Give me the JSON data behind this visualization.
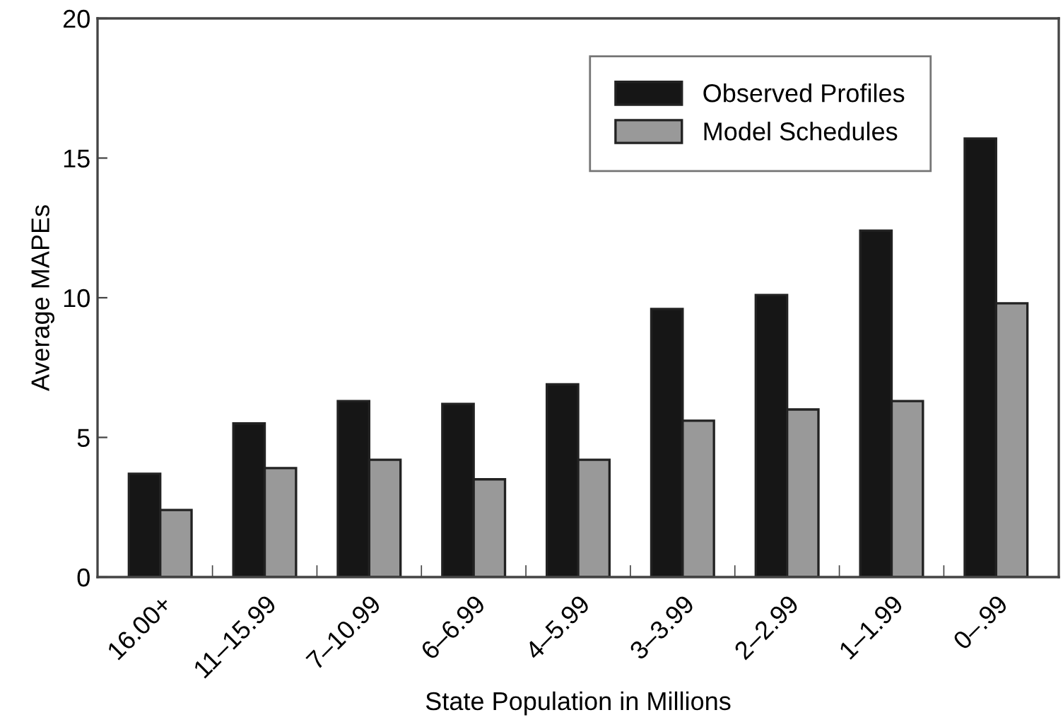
{
  "chart_data": {
    "type": "bar",
    "xlabel": "State Population in Millions",
    "ylabel": "Average MAPEs",
    "categories": [
      "16.00+",
      "11–15.99",
      "7–10.99",
      "6–6.99",
      "4–5.99",
      "3–3.99",
      "2–2.99",
      "1–1.99",
      "0–.99"
    ],
    "series": [
      {
        "name": "Observed Profiles",
        "color": "#161616",
        "values": [
          3.7,
          5.5,
          6.3,
          6.2,
          6.9,
          9.6,
          10.1,
          12.4,
          15.7
        ]
      },
      {
        "name": "Model Schedules",
        "color": "#999999",
        "values": [
          2.4,
          3.9,
          4.2,
          3.5,
          4.2,
          5.6,
          6.0,
          6.3,
          9.8
        ]
      }
    ],
    "ylim": [
      0,
      20
    ],
    "yticks": [
      0,
      5,
      10,
      15,
      20
    ],
    "grid": false,
    "legend": "top right"
  }
}
